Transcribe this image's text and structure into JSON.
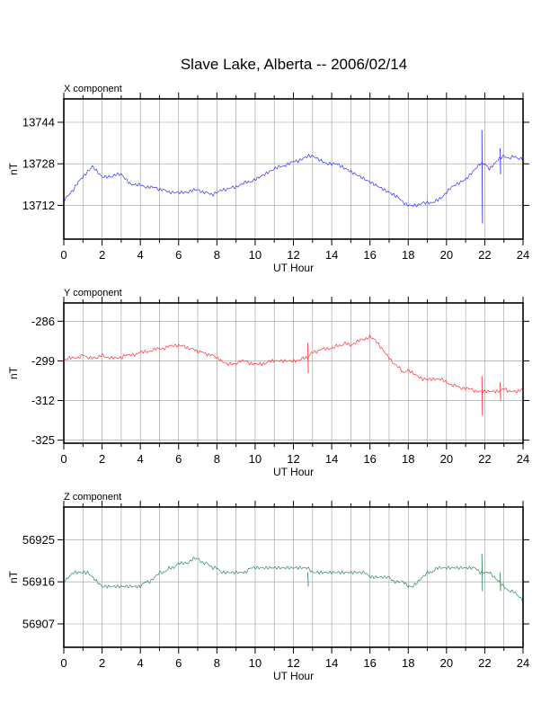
{
  "title": "Slave Lake, Alberta -- 2006/02/14",
  "chart_data": [
    {
      "type": "line",
      "panel_title": "X component",
      "xlabel": "UT Hour",
      "ylabel": "nT",
      "xlim": [
        0,
        24
      ],
      "ylim": [
        13699,
        13753
      ],
      "xticks": [
        0,
        2,
        4,
        6,
        8,
        10,
        12,
        14,
        16,
        18,
        20,
        22,
        24
      ],
      "yticks": [
        13712,
        13728,
        13744
      ],
      "grid": true,
      "series": [
        {
          "color": "#3333ff",
          "x": [
            0,
            0.25,
            0.5,
            0.75,
            1,
            1.25,
            1.5,
            1.75,
            2,
            2.25,
            2.5,
            2.75,
            3,
            3.25,
            3.5,
            3.75,
            4,
            4.25,
            4.5,
            4.75,
            5,
            5.25,
            5.5,
            5.75,
            6,
            6.25,
            6.5,
            6.75,
            7,
            7.25,
            7.5,
            7.75,
            8,
            8.25,
            8.5,
            8.75,
            9,
            9.25,
            9.5,
            9.75,
            10,
            10.25,
            10.5,
            10.75,
            11,
            11.25,
            11.5,
            11.75,
            12,
            12.25,
            12.5,
            12.75,
            13,
            13.25,
            13.5,
            13.75,
            14,
            14.25,
            14.5,
            14.75,
            15,
            15.25,
            15.5,
            15.75,
            16,
            16.25,
            16.5,
            16.75,
            17,
            17.25,
            17.5,
            17.75,
            18,
            18.25,
            18.5,
            18.75,
            19,
            19.25,
            19.5,
            19.75,
            20,
            20.25,
            20.5,
            20.75,
            21,
            21.25,
            21.5,
            21.75,
            22,
            22.25,
            22.5,
            22.75,
            23,
            23.25,
            23.5,
            23.75,
            24
          ],
          "values": [
            13714,
            13716,
            13718,
            13721,
            13723,
            13725,
            13727,
            13725,
            13723,
            13723,
            13723,
            13724,
            13724,
            13722,
            13720,
            13720,
            13720,
            13719,
            13719,
            13719,
            13718,
            13718,
            13717,
            13717,
            13717,
            13717,
            13717,
            13718,
            13718,
            13717,
            13717,
            13716,
            13717,
            13718,
            13718,
            13719,
            13719,
            13720,
            13721,
            13721,
            13722,
            13723,
            13724,
            13725,
            13726,
            13727,
            13727,
            13728,
            13729,
            13729,
            13730,
            13731,
            13731,
            13730,
            13729,
            13728,
            13728,
            13728,
            13727,
            13726,
            13725,
            13724,
            13723,
            13722,
            13721,
            13720,
            13719,
            13718,
            13717,
            13716,
            13715,
            13713,
            13712,
            13712,
            13712,
            13713,
            13713,
            13713,
            13714,
            13715,
            13717,
            13719,
            13720,
            13721,
            13722,
            13724,
            13726,
            13728,
            13728,
            13726,
            13728,
            13730,
            13731,
            13730,
            13731,
            13730,
            13730
          ],
          "spikes": [
            {
              "x": 21.85,
              "values": [
                13741,
                13705
              ]
            },
            {
              "x": 22.8,
              "values": [
                13734,
                13724
              ]
            }
          ]
        }
      ]
    },
    {
      "type": "line",
      "panel_title": "Y component",
      "xlabel": "UT Hour",
      "ylabel": "nT",
      "xlim": [
        0,
        24
      ],
      "ylim": [
        -326,
        -280
      ],
      "xticks": [
        0,
        2,
        4,
        6,
        8,
        10,
        12,
        14,
        16,
        18,
        20,
        22,
        24
      ],
      "yticks": [
        -286,
        -299,
        -312,
        -325
      ],
      "grid": true,
      "series": [
        {
          "color": "#ff3333",
          "x": [
            0,
            0.25,
            0.5,
            0.75,
            1,
            1.25,
            1.5,
            1.75,
            2,
            2.25,
            2.5,
            2.75,
            3,
            3.25,
            3.5,
            3.75,
            4,
            4.25,
            4.5,
            4.75,
            5,
            5.25,
            5.5,
            5.75,
            6,
            6.25,
            6.5,
            6.75,
            7,
            7.25,
            7.5,
            7.75,
            8,
            8.25,
            8.5,
            8.75,
            9,
            9.25,
            9.5,
            9.75,
            10,
            10.25,
            10.5,
            10.75,
            11,
            11.25,
            11.5,
            11.75,
            12,
            12.25,
            12.5,
            12.75,
            13,
            13.25,
            13.5,
            13.75,
            14,
            14.25,
            14.5,
            14.75,
            15,
            15.25,
            15.5,
            15.75,
            16,
            16.25,
            16.5,
            16.75,
            17,
            17.25,
            17.5,
            17.75,
            18,
            18.25,
            18.5,
            18.75,
            19,
            19.25,
            19.5,
            19.75,
            20,
            20.25,
            20.5,
            20.75,
            21,
            21.25,
            21.5,
            21.75,
            22,
            22.25,
            22.5,
            22.75,
            23,
            23.25,
            23.5,
            23.75,
            24
          ],
          "values": [
            -299,
            -298,
            -298,
            -298,
            -297,
            -298,
            -298,
            -298,
            -297,
            -298,
            -298,
            -298,
            -298,
            -297,
            -297,
            -297,
            -296,
            -296,
            -296,
            -295,
            -295,
            -295,
            -294,
            -294,
            -294,
            -294,
            -295,
            -295,
            -296,
            -296,
            -297,
            -297,
            -298,
            -299,
            -300,
            -300,
            -300,
            -299,
            -299,
            -300,
            -300,
            -300,
            -300,
            -299,
            -299,
            -299,
            -299,
            -299,
            -299,
            -299,
            -298,
            -298,
            -296,
            -296,
            -295,
            -295,
            -295,
            -294,
            -294,
            -293,
            -294,
            -293,
            -292,
            -292,
            -291,
            -292,
            -294,
            -296,
            -298,
            -300,
            -301,
            -303,
            -302,
            -303,
            -304,
            -305,
            -305,
            -305,
            -305,
            -305,
            -306,
            -307,
            -307,
            -308,
            -308,
            -308,
            -309,
            -309,
            -309,
            -309,
            -309,
            -309,
            -308,
            -309,
            -309,
            -309,
            -308
          ],
          "spikes": [
            {
              "x": 12.75,
              "values": [
                -293,
                -303
              ]
            },
            {
              "x": 21.85,
              "values": [
                -304,
                -317
              ]
            },
            {
              "x": 22.8,
              "values": [
                -306,
                -312
              ]
            }
          ]
        }
      ]
    },
    {
      "type": "line",
      "panel_title": "Z component",
      "xlabel": "UT Hour",
      "ylabel": "nT",
      "xlim": [
        0,
        24
      ],
      "ylim": [
        56902,
        56932
      ],
      "xticks": [
        0,
        2,
        4,
        6,
        8,
        10,
        12,
        14,
        16,
        18,
        20,
        22,
        24
      ],
      "yticks": [
        56907,
        56916,
        56925
      ],
      "grid": true,
      "series": [
        {
          "color": "#2e8b57",
          "x": [
            0,
            0.25,
            0.5,
            0.75,
            1,
            1.25,
            1.5,
            1.75,
            2,
            2.25,
            2.5,
            2.75,
            3,
            3.25,
            3.5,
            3.75,
            4,
            4.25,
            4.5,
            4.75,
            5,
            5.25,
            5.5,
            5.75,
            6,
            6.25,
            6.5,
            6.75,
            7,
            7.25,
            7.5,
            7.75,
            8,
            8.25,
            8.5,
            8.75,
            9,
            9.25,
            9.5,
            9.75,
            10,
            10.25,
            10.5,
            10.75,
            11,
            11.25,
            11.5,
            11.75,
            12,
            12.25,
            12.5,
            12.75,
            13,
            13.25,
            13.5,
            13.75,
            14,
            14.25,
            14.5,
            14.75,
            15,
            15.25,
            15.5,
            15.75,
            16,
            16.25,
            16.5,
            16.75,
            17,
            17.25,
            17.5,
            17.75,
            18,
            18.25,
            18.5,
            18.75,
            19,
            19.25,
            19.5,
            19.75,
            20,
            20.25,
            20.5,
            20.75,
            21,
            21.25,
            21.5,
            21.75,
            22,
            22.25,
            22.5,
            22.75,
            23,
            23.25,
            23.5,
            23.75,
            24
          ],
          "values": [
            56916,
            56917,
            56918,
            56918,
            56918,
            56918,
            56917,
            56916,
            56915,
            56915,
            56915,
            56915,
            56915,
            56915,
            56915,
            56915,
            56915,
            56916,
            56916,
            56917,
            56918,
            56918,
            56919,
            56919,
            56920,
            56920,
            56920,
            56921,
            56921,
            56920,
            56920,
            56919,
            56919,
            56918,
            56918,
            56918,
            56918,
            56918,
            56918,
            56919,
            56919,
            56919,
            56919,
            56919,
            56919,
            56919,
            56919,
            56919,
            56919,
            56919,
            56919,
            56919,
            56918,
            56918,
            56918,
            56918,
            56918,
            56918,
            56918,
            56918,
            56918,
            56918,
            56918,
            56918,
            56917,
            56917,
            56917,
            56917,
            56917,
            56916,
            56916,
            56916,
            56915,
            56915,
            56916,
            56917,
            56918,
            56918,
            56919,
            56919,
            56919,
            56919,
            56919,
            56919,
            56919,
            56919,
            56919,
            56918,
            56918,
            56918,
            56917,
            56916,
            56915,
            56914,
            56914,
            56913,
            56912
          ],
          "spikes": [
            {
              "x": 12.75,
              "values": [
                56918,
                56915
              ]
            },
            {
              "x": 21.85,
              "values": [
                56922,
                56914
              ]
            },
            {
              "x": 22.8,
              "values": [
                56918,
                56914
              ]
            }
          ]
        }
      ]
    }
  ]
}
